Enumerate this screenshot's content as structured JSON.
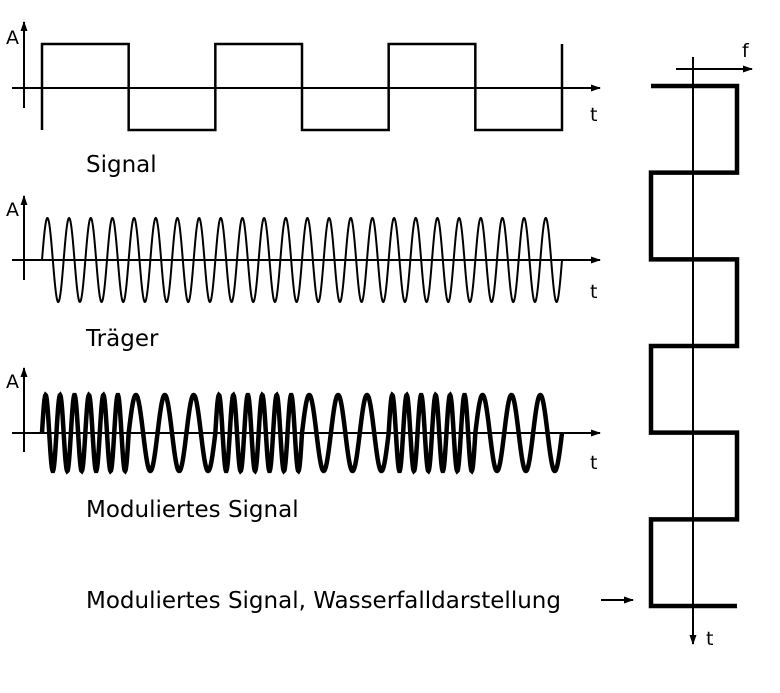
{
  "labels": {
    "amplitude": "A",
    "time": "t",
    "frequency": "f",
    "signal": "Signal",
    "carrier": "Träger",
    "modulated": "Moduliertes Signal",
    "waterfall": "Moduliertes Signal, Wasserfalldarstellung"
  },
  "signal": {
    "bits": [
      1,
      0,
      1,
      0,
      1,
      0
    ]
  },
  "carrier": {
    "cycles": 24
  },
  "modulated": {
    "cycles_per_high_bit": 6,
    "cycles_per_low_bit": 3
  },
  "colors": {
    "ink": "#000000",
    "background": "#ffffff"
  }
}
